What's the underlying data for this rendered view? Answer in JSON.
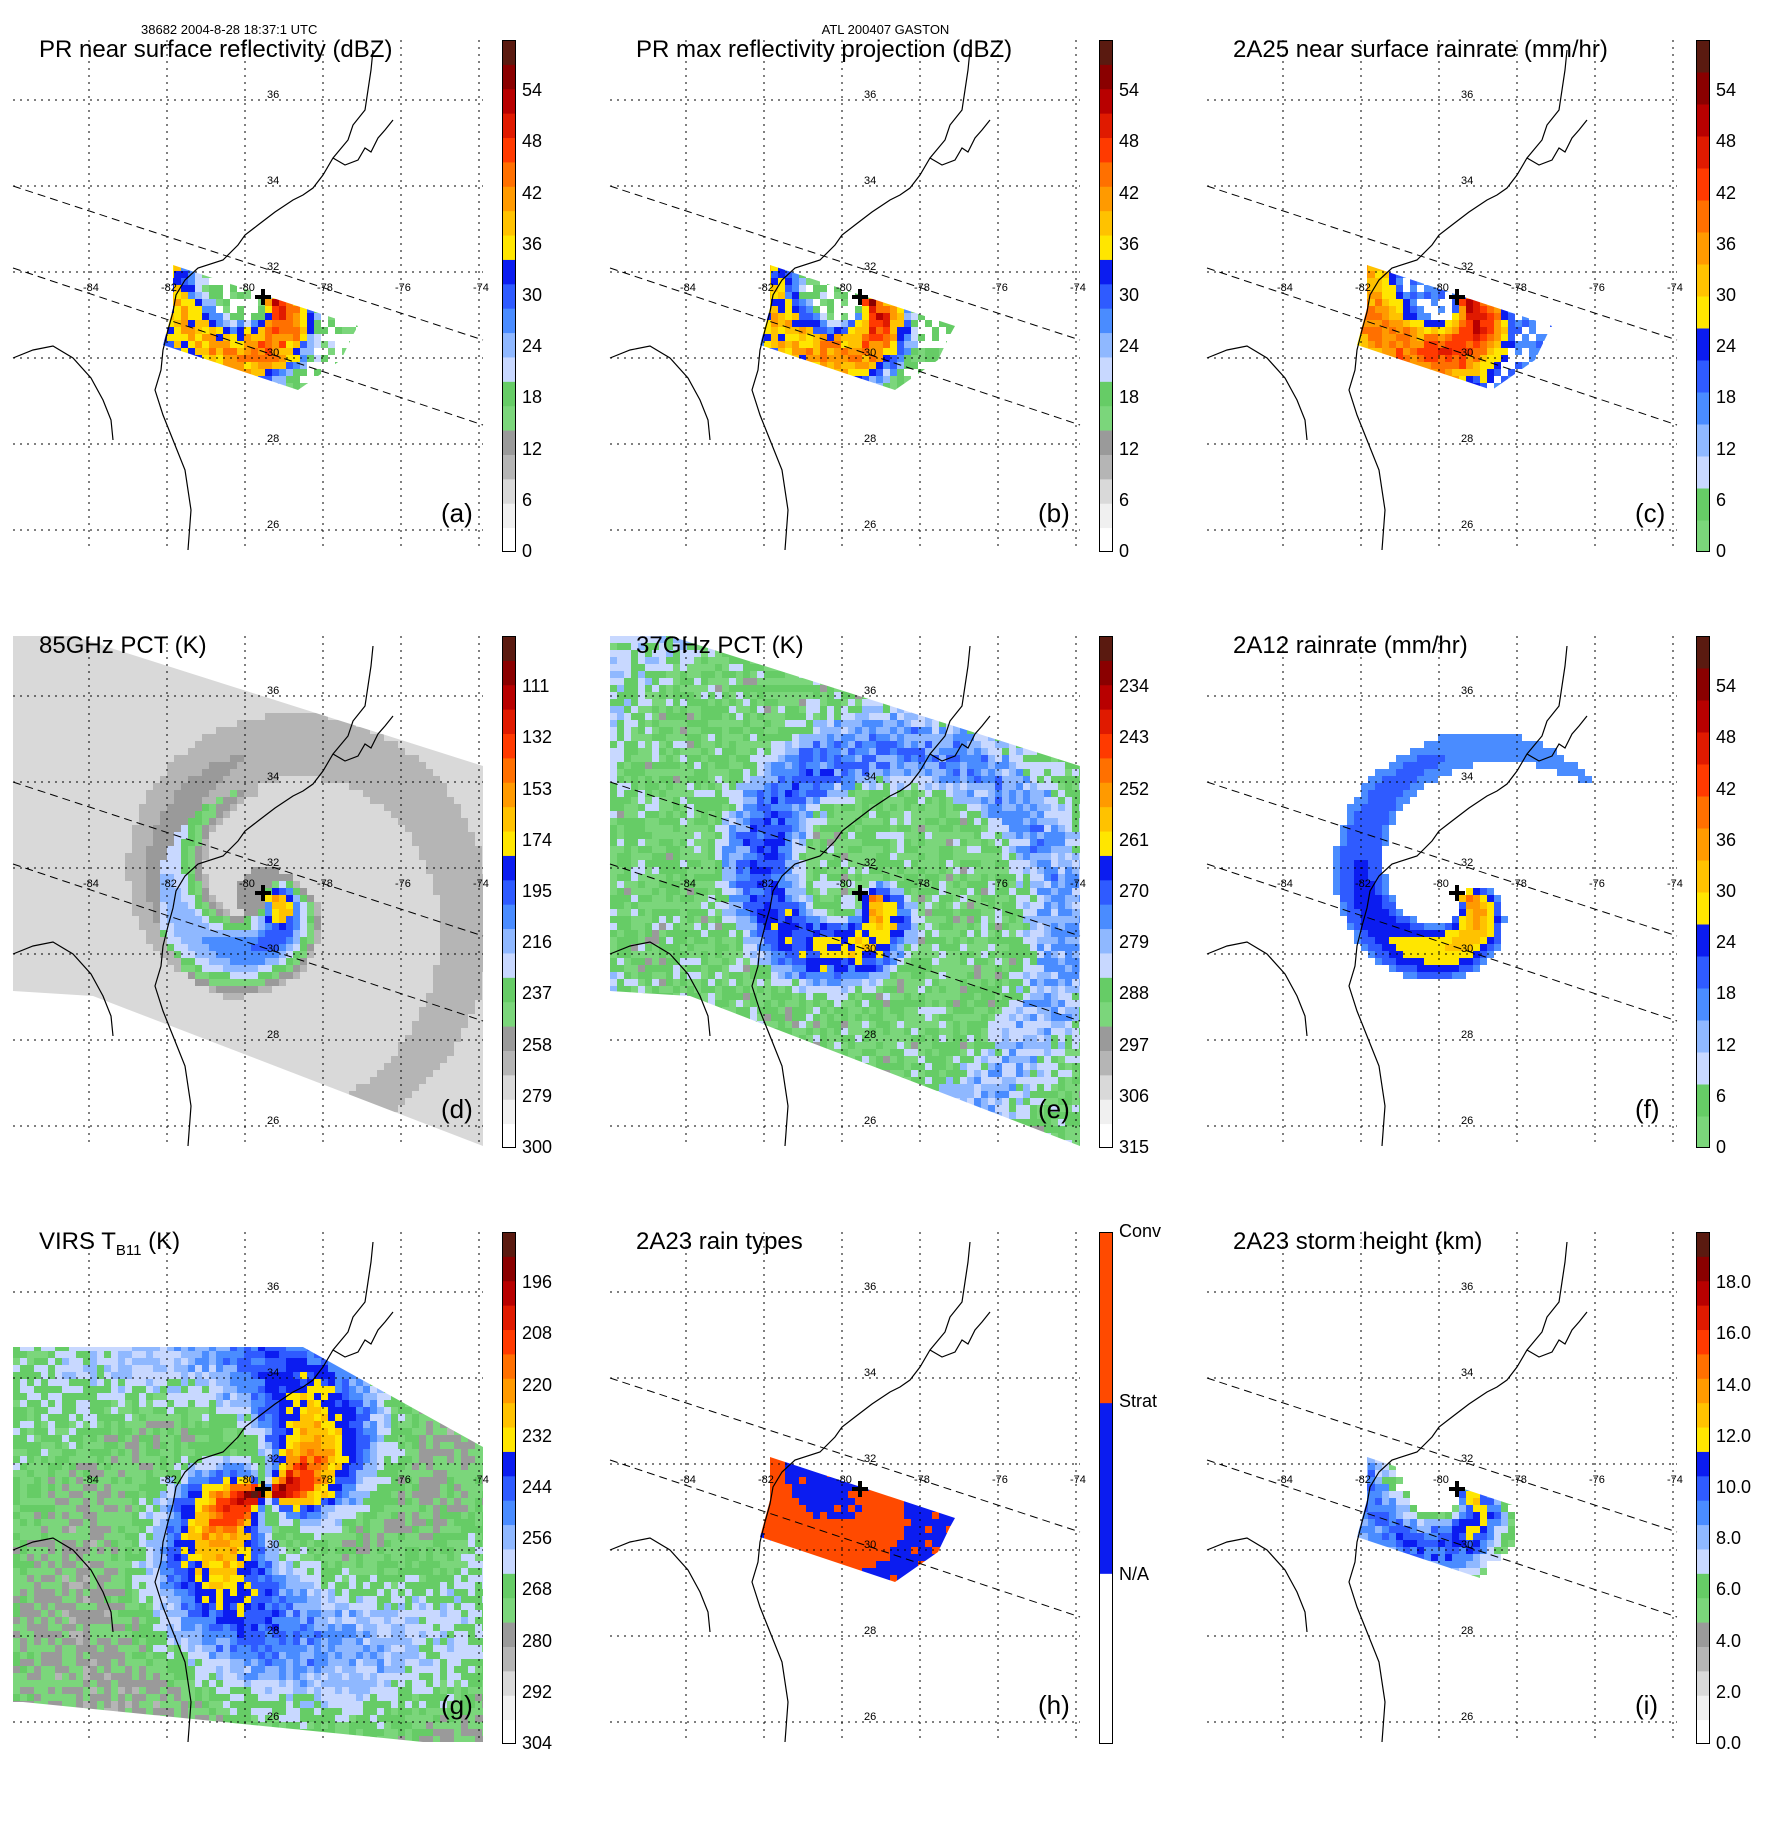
{
  "header": {
    "orbit": "38682 2004-8-28 18:37:1 UTC",
    "storm": "ATL 200407 GASTON"
  },
  "map_labels": {
    "lon": [
      "-84",
      "-82",
      "-80",
      "-78",
      "-76",
      "-74"
    ],
    "lat": [
      "36",
      "34",
      "32",
      "30",
      "28",
      "26"
    ]
  },
  "scales": {
    "dbz": {
      "ticks": [
        "0",
        "6",
        "12",
        "18",
        "24",
        "30",
        "36",
        "42",
        "48",
        "54"
      ],
      "colors": [
        "#ffffff",
        "#f0f0f0",
        "#d9d9d9",
        "#b5b5b5",
        "#9a9a9a",
        "#7bd67b",
        "#66cc66",
        "#c8d8ff",
        "#8fb8ff",
        "#4a8cff",
        "#2f5bff",
        "#0b1cf0",
        "#ffe600",
        "#ffc200",
        "#ff9a00",
        "#ff7000",
        "#ff3a00",
        "#e01a00",
        "#b80000",
        "#8a0000",
        "#5a1a10"
      ]
    },
    "rain": {
      "ticks": [
        "0",
        "6",
        "12",
        "18",
        "24",
        "30",
        "36",
        "42",
        "48",
        "54"
      ],
      "colors": [
        "#7bd67b",
        "#66cc66",
        "#c8d8ff",
        "#8fb8ff",
        "#4a8cff",
        "#2f5bff",
        "#0b1cf0",
        "#ffe600",
        "#ffc200",
        "#ff9a00",
        "#ff7000",
        "#ff3a00",
        "#e01a00",
        "#b80000",
        "#8a0000",
        "#5a1a10"
      ]
    },
    "pct85": {
      "ticks": [
        "300",
        "279",
        "258",
        "237",
        "216",
        "195",
        "174",
        "153",
        "132",
        "111"
      ],
      "colors": [
        "#ffffff",
        "#f0f0f0",
        "#d9d9d9",
        "#b5b5b5",
        "#9a9a9a",
        "#7bd67b",
        "#66cc66",
        "#c8d8ff",
        "#8fb8ff",
        "#4a8cff",
        "#2f5bff",
        "#0b1cf0",
        "#ffe600",
        "#ffc200",
        "#ff9a00",
        "#ff7000",
        "#ff3a00",
        "#e01a00",
        "#b80000",
        "#8a0000",
        "#5a1a10"
      ]
    },
    "pct37": {
      "ticks": [
        "315",
        "306",
        "297",
        "288",
        "279",
        "270",
        "261",
        "252",
        "243",
        "234"
      ],
      "colors": [
        "#ffffff",
        "#f0f0f0",
        "#d9d9d9",
        "#b5b5b5",
        "#9a9a9a",
        "#7bd67b",
        "#66cc66",
        "#c8d8ff",
        "#8fb8ff",
        "#4a8cff",
        "#2f5bff",
        "#0b1cf0",
        "#ffe600",
        "#ffc200",
        "#ff9a00",
        "#ff7000",
        "#ff3a00",
        "#e01a00",
        "#b80000",
        "#8a0000",
        "#5a1a10"
      ]
    },
    "virs": {
      "ticks": [
        "304",
        "292",
        "280",
        "268",
        "256",
        "244",
        "232",
        "220",
        "208",
        "196"
      ],
      "colors": [
        "#ffffff",
        "#f0f0f0",
        "#d9d9d9",
        "#b5b5b5",
        "#9a9a9a",
        "#7bd67b",
        "#66cc66",
        "#c8d8ff",
        "#8fb8ff",
        "#4a8cff",
        "#2f5bff",
        "#0b1cf0",
        "#ffe600",
        "#ffc200",
        "#ff9a00",
        "#ff7000",
        "#ff3a00",
        "#e01a00",
        "#b80000",
        "#8a0000",
        "#5a1a10"
      ]
    },
    "raintype": {
      "ticks": [
        "N/A",
        "Strat",
        "Conv"
      ],
      "colors": [
        "#ffffff",
        "#0b1cf0",
        "#ff4a00"
      ]
    },
    "height": {
      "ticks": [
        "0.0",
        "2.0",
        "4.0",
        "6.0",
        "8.0",
        "10.0",
        "12.0",
        "14.0",
        "16.0",
        "18.0"
      ],
      "colors": [
        "#ffffff",
        "#f0f0f0",
        "#d9d9d9",
        "#b5b5b5",
        "#9a9a9a",
        "#7bd67b",
        "#66cc66",
        "#c8d8ff",
        "#8fb8ff",
        "#4a8cff",
        "#2f5bff",
        "#0b1cf0",
        "#ffe600",
        "#ffc200",
        "#ff9a00",
        "#ff7000",
        "#ff3a00",
        "#e01a00",
        "#b80000",
        "#8a0000",
        "#5a1a10"
      ]
    }
  },
  "chart_data": [
    {
      "type": "heatmap",
      "id": "a",
      "title": "PR near surface reflectivity (dBZ)",
      "label": "(a)",
      "colorbar": "dbz",
      "swath": "pr",
      "field": "spiral"
    },
    {
      "type": "heatmap",
      "id": "b",
      "title": "PR max reflectivity projection (dBZ)",
      "label": "(b)",
      "colorbar": "dbz",
      "swath": "pr",
      "field": "spiral"
    },
    {
      "type": "heatmap",
      "id": "c",
      "title": "2A25 near surface rainrate (mm/hr)",
      "label": "(c)",
      "colorbar": "rain",
      "swath": "pr",
      "field": "spiral"
    },
    {
      "type": "heatmap",
      "id": "d",
      "title": "85GHz PCT (K)",
      "label": "(d)",
      "colorbar": "pct85",
      "swath": "tmi",
      "field": "pct85"
    },
    {
      "type": "heatmap",
      "id": "e",
      "title": "37GHz PCT (K)",
      "label": "(e)",
      "colorbar": "pct37",
      "swath": "tmi",
      "field": "pct37"
    },
    {
      "type": "heatmap",
      "id": "f",
      "title": "2A12 rainrate (mm/hr)",
      "label": "(f)",
      "colorbar": "rain",
      "swath": "tmi",
      "field": "rain12"
    },
    {
      "type": "heatmap",
      "id": "g",
      "title": "VIRS T",
      "title_sub": "B11",
      "title_unit": " (K)",
      "label": "(g)",
      "colorbar": "virs",
      "swath": "virs",
      "field": "virs"
    },
    {
      "type": "heatmap",
      "id": "h",
      "title": "2A23 rain types",
      "label": "(h)",
      "colorbar": "raintype",
      "swath": "pr",
      "field": "types"
    },
    {
      "type": "heatmap",
      "id": "i",
      "title": "2A23 storm height (km)",
      "label": "(i)",
      "colorbar": "height",
      "swath": "pr",
      "field": "height"
    }
  ]
}
